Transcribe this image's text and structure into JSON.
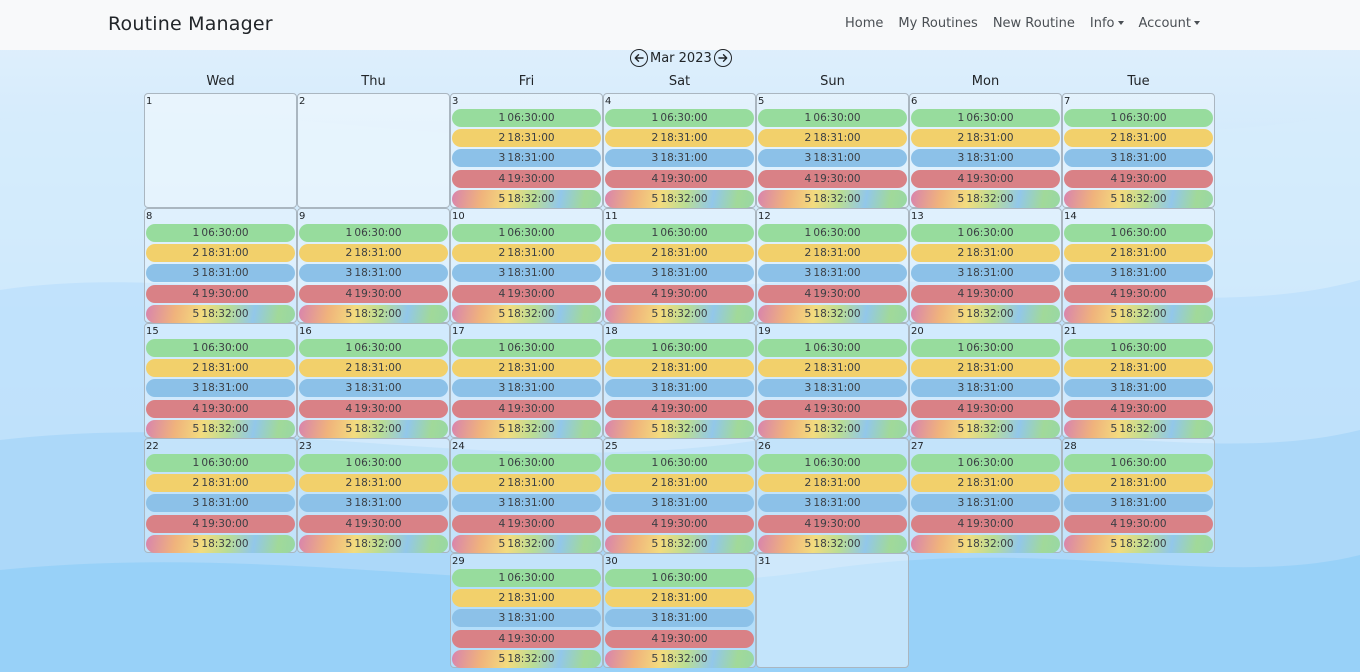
{
  "app": {
    "title": "Routine Manager"
  },
  "nav": {
    "home": "Home",
    "my_routines": "My Routines",
    "new_routine": "New Routine",
    "info": "Info",
    "account": "Account"
  },
  "calendar": {
    "month_label": "Mar 2023",
    "weekdays": [
      "Wed",
      "Thu",
      "Fri",
      "Sat",
      "Sun",
      "Mon",
      "Tue"
    ],
    "leading_blank_cells": 0,
    "days": [
      {
        "day": "1",
        "routines": false
      },
      {
        "day": "2",
        "routines": false
      },
      {
        "day": "3",
        "routines": true
      },
      {
        "day": "4",
        "routines": true
      },
      {
        "day": "5",
        "routines": true
      },
      {
        "day": "6",
        "routines": true
      },
      {
        "day": "7",
        "routines": true
      },
      {
        "day": "8",
        "routines": true
      },
      {
        "day": "9",
        "routines": true
      },
      {
        "day": "10",
        "routines": true
      },
      {
        "day": "11",
        "routines": true
      },
      {
        "day": "12",
        "routines": true
      },
      {
        "day": "13",
        "routines": true
      },
      {
        "day": "14",
        "routines": true
      },
      {
        "day": "15",
        "routines": true
      },
      {
        "day": "16",
        "routines": true
      },
      {
        "day": "17",
        "routines": true
      },
      {
        "day": "18",
        "routines": true
      },
      {
        "day": "19",
        "routines": true
      },
      {
        "day": "20",
        "routines": true
      },
      {
        "day": "21",
        "routines": true
      },
      {
        "day": "22",
        "routines": true
      },
      {
        "day": "23",
        "routines": true
      },
      {
        "day": "24",
        "routines": true
      },
      {
        "day": "25",
        "routines": true
      },
      {
        "day": "26",
        "routines": true
      },
      {
        "day": "27",
        "routines": true
      },
      {
        "day": "28",
        "routines": true
      },
      {
        "day": "",
        "routines": false,
        "blank": true
      },
      {
        "day": "",
        "routines": false,
        "blank": true
      },
      {
        "day": "29",
        "routines": true
      },
      {
        "day": "30",
        "routines": true
      },
      {
        "day": "31",
        "routines": false
      }
    ],
    "routines": [
      {
        "num": "1",
        "time": "06:30:00",
        "color": "#97dc9d",
        "style": "solid"
      },
      {
        "num": "2",
        "time": "18:31:00",
        "color": "#f2d06b",
        "style": "solid"
      },
      {
        "num": "3",
        "time": "18:31:00",
        "color": "#8cc1e8",
        "style": "solid"
      },
      {
        "num": "4",
        "time": "19:30:00",
        "color": "#d98186",
        "style": "solid"
      },
      {
        "num": "5",
        "time": "18:32:00",
        "color": "rainbow",
        "style": "gradient"
      }
    ]
  }
}
